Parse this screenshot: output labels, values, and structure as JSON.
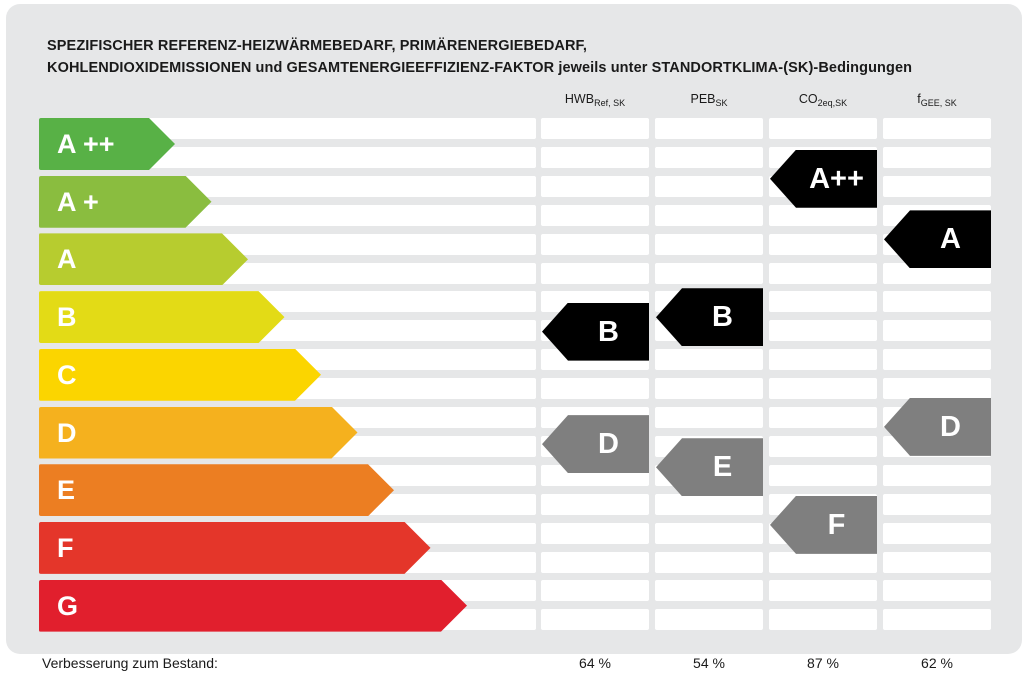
{
  "title": {
    "line1": "SPEZIFISCHER REFERENZ-HEIZWÄRMEBEDARF, PRIMÄRENERGIEBEDARF,",
    "line2": "KOHLENDIOXIDEMISSIONEN und GESAMTENERGIEEFFIZIENZ-FAKTOR jeweils unter STANDORTKLIMA-(SK)-Bedingungen"
  },
  "columns": [
    {
      "main": "HWB",
      "sub": "Ref, SK"
    },
    {
      "main": "PEB",
      "sub": "SK"
    },
    {
      "main": "CO",
      "sub": "2eq,SK"
    },
    {
      "main": "f",
      "sub": "GEE, SK"
    }
  ],
  "footer": {
    "label": "Verbesserung zum Bestand:",
    "values": [
      "64 %",
      "54 %",
      "87 %",
      "62 %"
    ]
  },
  "chart_data": {
    "type": "energy-rating",
    "classes": [
      {
        "label": "A ++",
        "color": "#58b146"
      },
      {
        "label": "A +",
        "color": "#8abd3f"
      },
      {
        "label": "A",
        "color": "#b7cc2f"
      },
      {
        "label": "B",
        "color": "#e3db16"
      },
      {
        "label": "C",
        "color": "#fbd500"
      },
      {
        "label": "D",
        "color": "#f5b11e"
      },
      {
        "label": "E",
        "color": "#ec7e22"
      },
      {
        "label": "F",
        "color": "#e4362a"
      },
      {
        "label": "G",
        "color": "#e11f2d"
      }
    ],
    "indicators": [
      {
        "column": "HWB Ref, SK",
        "markers": [
          {
            "rating": "B",
            "level": 3.2,
            "variant": "current",
            "color": "#000000"
          },
          {
            "rating": "D",
            "level": 5.15,
            "variant": "existing",
            "color": "#7f7f7f"
          }
        ]
      },
      {
        "column": "PEB SK",
        "markers": [
          {
            "rating": "B",
            "level": 2.95,
            "variant": "current",
            "color": "#000000"
          },
          {
            "rating": "E",
            "level": 5.55,
            "variant": "existing",
            "color": "#7f7f7f"
          }
        ]
      },
      {
        "column": "CO2eq,SK",
        "markers": [
          {
            "rating": "A++",
            "level": 0.55,
            "variant": "current",
            "color": "#000000"
          },
          {
            "rating": "F",
            "level": 6.55,
            "variant": "existing",
            "color": "#7f7f7f"
          }
        ]
      },
      {
        "column": "fGEE, SK",
        "markers": [
          {
            "rating": "A",
            "level": 1.6,
            "variant": "current",
            "color": "#000000"
          },
          {
            "rating": "D",
            "level": 4.85,
            "variant": "existing",
            "color": "#7f7f7f"
          }
        ]
      }
    ]
  }
}
